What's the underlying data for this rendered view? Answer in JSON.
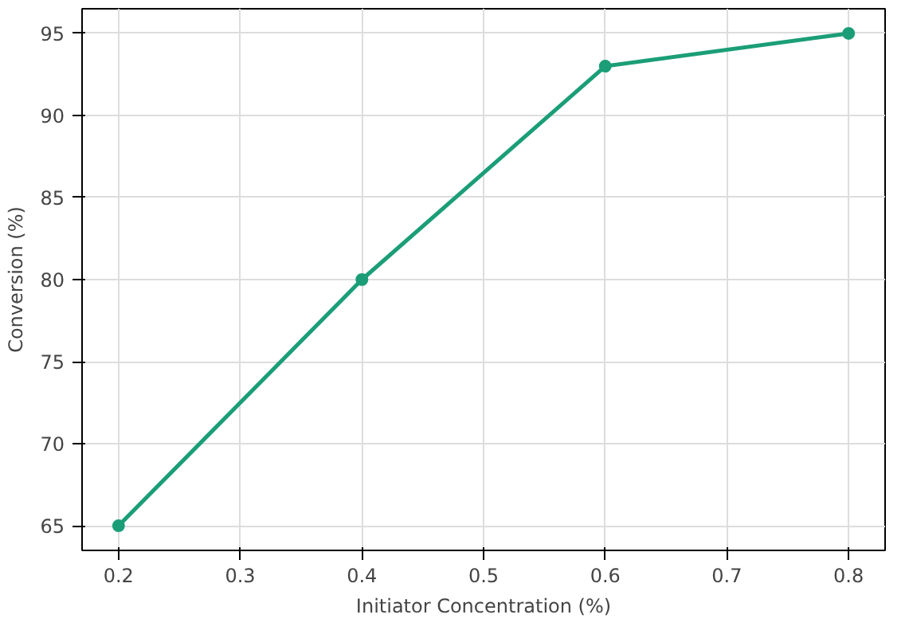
{
  "chart_data": {
    "type": "line",
    "xlabel": "Initiator Concentration (%)",
    "ylabel": "Conversion (%)",
    "x": [
      0.2,
      0.4,
      0.6,
      0.8
    ],
    "series": [
      {
        "color": "#1b9e77",
        "values": [
          65,
          80,
          93,
          95
        ]
      }
    ],
    "xlim": [
      0.17,
      0.83
    ],
    "ylim": [
      63.5,
      96.5
    ],
    "xticks": [
      0.2,
      0.3,
      0.4,
      0.5,
      0.6,
      0.7,
      0.8
    ],
    "yticks": [
      65,
      70,
      75,
      80,
      85,
      90,
      95
    ],
    "grid": true,
    "marker": "circle",
    "line_style": "solid"
  }
}
